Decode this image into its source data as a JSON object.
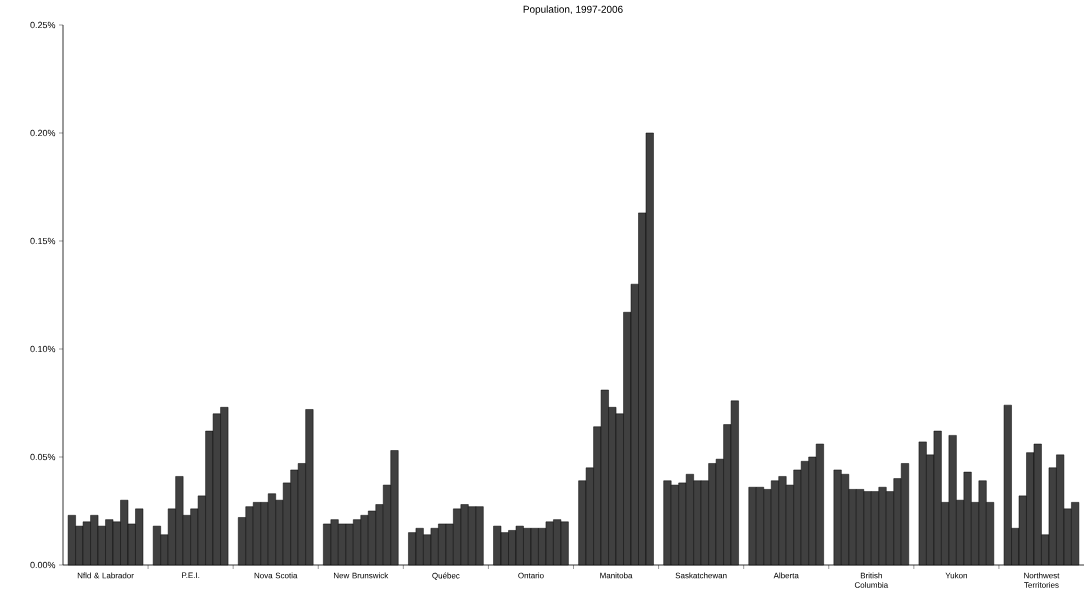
{
  "chart_data": {
    "type": "bar",
    "title": "Population, 1997-2006",
    "categories": [
      "Nfld & Labrador",
      "P.E.I.",
      "Nova Scotia",
      "New Brunswick",
      "Québec",
      "Ontario",
      "Manitoba",
      "Saskatchewan",
      "Alberta",
      "British Columbia",
      "Yukon",
      "Northwest Territories"
    ],
    "series": [
      {
        "color": "#404040",
        "values": [
          0.023,
          0.018,
          0.022,
          0.019,
          0.015,
          0.018,
          0.039,
          0.039,
          0.036,
          0.044,
          0.057,
          0.074
        ]
      },
      {
        "color": "#404040",
        "values": [
          0.018,
          0.014,
          0.027,
          0.021,
          0.017,
          0.015,
          0.045,
          0.037,
          0.036,
          0.042,
          0.051,
          0.017
        ]
      },
      {
        "color": "#404040",
        "values": [
          0.02,
          0.026,
          0.029,
          0.019,
          0.014,
          0.016,
          0.064,
          0.038,
          0.035,
          0.035,
          0.062,
          0.032
        ]
      },
      {
        "color": "#404040",
        "values": [
          0.023,
          0.041,
          0.029,
          0.019,
          0.017,
          0.018,
          0.081,
          0.042,
          0.039,
          0.035,
          0.029,
          0.052
        ]
      },
      {
        "color": "#404040",
        "values": [
          0.018,
          0.023,
          0.033,
          0.021,
          0.019,
          0.017,
          0.073,
          0.039,
          0.041,
          0.034,
          0.06,
          0.056
        ]
      },
      {
        "color": "#404040",
        "values": [
          0.021,
          0.026,
          0.03,
          0.023,
          0.019,
          0.017,
          0.07,
          0.039,
          0.037,
          0.034,
          0.03,
          0.014
        ]
      },
      {
        "color": "#404040",
        "values": [
          0.02,
          0.032,
          0.038,
          0.025,
          0.026,
          0.017,
          0.117,
          0.047,
          0.044,
          0.036,
          0.043,
          0.045
        ]
      },
      {
        "color": "#404040",
        "values": [
          0.03,
          0.062,
          0.044,
          0.028,
          0.028,
          0.02,
          0.13,
          0.049,
          0.048,
          0.034,
          0.029,
          0.051
        ]
      },
      {
        "color": "#404040",
        "values": [
          0.019,
          0.07,
          0.047,
          0.037,
          0.027,
          0.021,
          0.163,
          0.065,
          0.05,
          0.04,
          0.039,
          0.026
        ]
      },
      {
        "color": "#404040",
        "values": [
          0.026,
          0.073,
          0.072,
          0.053,
          0.027,
          0.02,
          0.2,
          0.076,
          0.056,
          0.047,
          0.029,
          0.029
        ]
      }
    ],
    "ylim": [
      0,
      0.25
    ],
    "yticks": [
      {
        "value": 0,
        "label": "0.00%"
      },
      {
        "value": 0.05,
        "label": "0.05%"
      },
      {
        "value": 0.1,
        "label": "0.10%"
      },
      {
        "value": 0.15,
        "label": "0.15%"
      },
      {
        "value": 0.2,
        "label": "0.20%"
      },
      {
        "value": 0.25,
        "label": "0.25%"
      }
    ],
    "grid": false
  }
}
